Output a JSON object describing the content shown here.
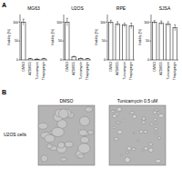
{
  "panel_labels": [
    "A",
    "B"
  ],
  "chart_data": [
    {
      "type": "bar",
      "title": "MG63",
      "y_label": "Viability (%)",
      "categories": [
        "DMSO",
        "AZD8055",
        "Tunicamycin",
        "Thapsigargin"
      ],
      "values": [
        100,
        3,
        2,
        3
      ],
      "errors": [
        8,
        1,
        1,
        1
      ],
      "color": "#ffffff",
      "ylim": [
        0,
        120
      ],
      "yticks": [
        0,
        50,
        100
      ]
    },
    {
      "type": "bar",
      "title": "U2OS",
      "y_label": "Viability (%)",
      "categories": [
        "DMSO",
        "AZD8055",
        "Tunicamycin",
        "Thapsigargin"
      ],
      "values": [
        100,
        8,
        4,
        3
      ],
      "errors": [
        10,
        2,
        1,
        1
      ],
      "color": "#ffffff",
      "ylim": [
        0,
        120
      ],
      "yticks": [
        0,
        50,
        100
      ]
    },
    {
      "type": "bar",
      "title": "RPE",
      "y_label": "Viability (%)",
      "categories": [
        "DMSO",
        "AZD8055",
        "Tunicamycin",
        "Thapsigargin"
      ],
      "values": [
        100,
        95,
        92,
        90
      ],
      "errors": [
        5,
        6,
        5,
        7
      ],
      "color": "#ffffff",
      "ylim": [
        0,
        120
      ],
      "yticks": [
        0,
        50,
        100
      ]
    },
    {
      "type": "bar",
      "title": "SJSA",
      "y_label": "Viability (%)",
      "categories": [
        "DMSO",
        "AZD8055",
        "Tunicamycin",
        "Thapsigargin"
      ],
      "values": [
        100,
        98,
        95,
        85
      ],
      "errors": [
        4,
        5,
        6,
        8
      ],
      "color": "#ffffff",
      "ylim": [
        0,
        120
      ],
      "yticks": [
        0,
        50,
        100
      ]
    }
  ],
  "images": {
    "row_label": "U2OS cells",
    "labels": [
      "DMSO",
      "Tunicamycin 0.5 uM"
    ]
  }
}
